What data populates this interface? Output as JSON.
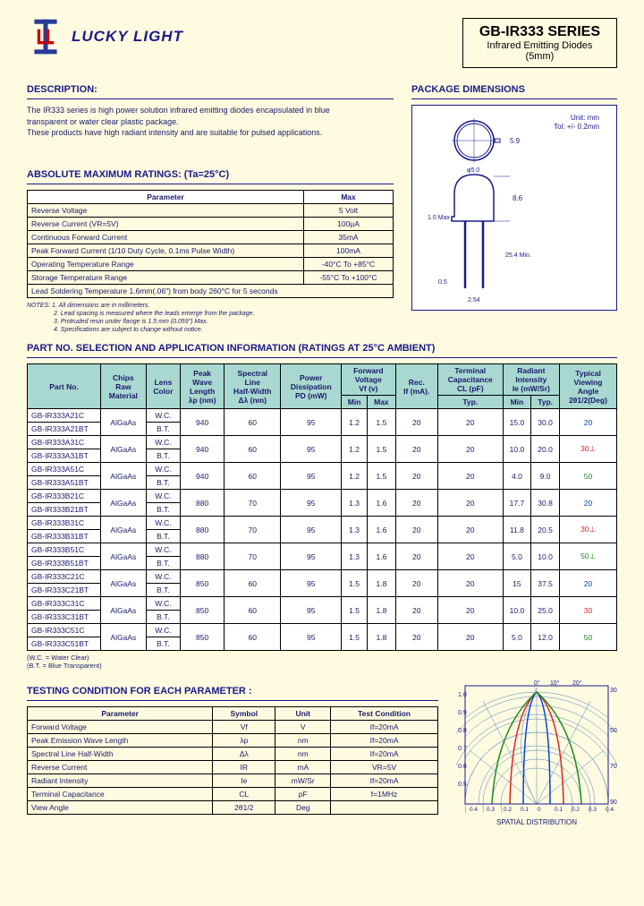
{
  "brand": "LUCKY LIGHT",
  "titleBox": {
    "main": "GB-IR333 SERIES",
    "sub1": "Infrared Emitting Diodes",
    "sub2": "(5mm)"
  },
  "sections": {
    "description": "DESCRIPTION:",
    "packageDim": "PACKAGE DIMENSIONS",
    "amr": "ABSOLUTE MAXIMUM RATINGS: (Ta=25°C)",
    "selection": "PART NO. SELECTION AND APPLICATION INFORMATION (RATINGS AT 25°C AMBIENT)",
    "testing": "TESTING CONDITION FOR EACH PARAMETER :",
    "spatial": "SPATIAL DISTRIBUTION"
  },
  "descText": "The IR333 series is high power solution infrared emitting diodes encapsulated in blue transparent or water clear plastic package.\nThese products have high radiant intensity and are suitable for pulsed applications.",
  "amrHeaders": [
    "Parameter",
    "Max"
  ],
  "amrRows": [
    [
      "Reverse Voltage",
      "5 Volt"
    ],
    [
      "Reverse Current (VR=5V)",
      "100µA"
    ],
    [
      "Continuous Forward Current",
      "35mA"
    ],
    [
      "Peak Forward Current (1/10 Duty Cycle, 0.1ms Pulse Width)",
      "100mA"
    ],
    [
      "Operating Temperature Range",
      "-40°C To +85°C"
    ],
    [
      "Storage Temperature Range",
      "-55°C To +100°C"
    ]
  ],
  "amrFoot": "Lead Soldering Temperature 1.6mm(.06\") from body 260°C for 5 seconds",
  "notesTitle": "NOTES: 1. All dimensions are in millimeters.",
  "notes2": "2. Lead spacing is measured where the leads emerge from the package.",
  "notes3": "3. Protruded resin under flange is 1.5 mm (0.059\") Max.",
  "notes4": "4. Specifications are subject to change without notice.",
  "pkgDimText": {
    "unit": "Unit: mm",
    "tol": "Tol: +/- 0.2mm"
  },
  "selHeaders": {
    "partNo": "Part No.",
    "chips": "Chips\nRaw\nMaterial",
    "lens": "Lens\nColor",
    "peak": "Peak\nWave\nLength\nλp (nm)",
    "spectral": "Spectral\nLine\nHalf-Width\nΔλ (nm)",
    "power": "Power\nDissipation\nPD (mW)",
    "vf": "Forward\nVoltage\nVf (v)",
    "vfMin": "Min",
    "vfMax": "Max",
    "rec": "Rec.\nIf (mA).",
    "cap": "Terminal\nCapacitance\nCL (pF)",
    "capTyp": "Typ.",
    "radiant": "Radiant\nIntensity\nIe (mW/Sr)",
    "radMin": "Min",
    "radTyp": "Typ.",
    "angle": "Typical\nViewing\nAngle\n2θ1/2(Deg)"
  },
  "selRows": [
    {
      "pn": [
        "GB-IR333A21C",
        "GB-IR333A21BT"
      ],
      "chips": "AlGaAs",
      "lens": [
        "W.C.",
        "B.T."
      ],
      "peak": "940",
      "spec": "60",
      "pd": "95",
      "vfmin": "1.2",
      "vfmax": "1.5",
      "rec": "20",
      "cap": "20",
      "rmin": "15.0",
      "rtyp": "30.0",
      "angle": "20",
      "cls": "angle-20"
    },
    {
      "pn": [
        "GB-IR333A31C",
        "GB-IR333A31BT"
      ],
      "chips": "AlGaAs",
      "lens": [
        "W.C.",
        "B.T."
      ],
      "peak": "940",
      "spec": "60",
      "pd": "95",
      "vfmin": "1.2",
      "vfmax": "1.5",
      "rec": "20",
      "cap": "20",
      "rmin": "10.0",
      "rtyp": "20.0",
      "angle": "30⊥",
      "cls": "angle-30"
    },
    {
      "pn": [
        "GB-IR333A51C",
        "GB-IR333A51BT"
      ],
      "chips": "AlGaAs",
      "lens": [
        "W.C.",
        "B.T."
      ],
      "peak": "940",
      "spec": "60",
      "pd": "95",
      "vfmin": "1.2",
      "vfmax": "1.5",
      "rec": "20",
      "cap": "20",
      "rmin": "4.0",
      "rtyp": "9.0",
      "angle": "50",
      "cls": "angle-50"
    },
    {
      "pn": [
        "GB-IR333B21C",
        "GB-IR333B21BT"
      ],
      "chips": "AlGaAs",
      "lens": [
        "W.C.",
        "B.T."
      ],
      "peak": "880",
      "spec": "70",
      "pd": "95",
      "vfmin": "1.3",
      "vfmax": "1.6",
      "rec": "20",
      "cap": "20",
      "rmin": "17.7",
      "rtyp": "30.8",
      "angle": "20",
      "cls": "angle-20"
    },
    {
      "pn": [
        "GB-IR333B31C",
        "GB-IR333B31BT"
      ],
      "chips": "AlGaAs",
      "lens": [
        "W.C.",
        "B.T."
      ],
      "peak": "880",
      "spec": "70",
      "pd": "95",
      "vfmin": "1.3",
      "vfmax": "1.6",
      "rec": "20",
      "cap": "20",
      "rmin": "11.8",
      "rtyp": "20.5",
      "angle": "30⊥",
      "cls": "angle-30"
    },
    {
      "pn": [
        "GB-IR333B51C",
        "GB-IR333B51BT"
      ],
      "chips": "AlGaAs",
      "lens": [
        "W.C.",
        "B.T."
      ],
      "peak": "880",
      "spec": "70",
      "pd": "95",
      "vfmin": "1.3",
      "vfmax": "1.6",
      "rec": "20",
      "cap": "20",
      "rmin": "5.0",
      "rtyp": "10.0",
      "angle": "50⊥",
      "cls": "angle-50"
    },
    {
      "pn": [
        "GB-IR333C21C",
        "GB-IR333C21BT"
      ],
      "chips": "AlGaAs",
      "lens": [
        "W.C.",
        "B.T."
      ],
      "peak": "850",
      "spec": "60",
      "pd": "95",
      "vfmin": "1.5",
      "vfmax": "1.8",
      "rec": "20",
      "cap": "20",
      "rmin": "15",
      "rtyp": "37.5",
      "angle": "20",
      "cls": "angle-20"
    },
    {
      "pn": [
        "GB-IR333C31C",
        "GB-IR333C31BT"
      ],
      "chips": "AlGaAs",
      "lens": [
        "W.C.",
        "B.T."
      ],
      "peak": "850",
      "spec": "60",
      "pd": "95",
      "vfmin": "1.5",
      "vfmax": "1.8",
      "rec": "20",
      "cap": "20",
      "rmin": "10.0",
      "rtyp": "25.0",
      "angle": "30",
      "cls": "angle-30"
    },
    {
      "pn": [
        "GB-IR333C51C",
        "GB-IR333C51BT"
      ],
      "chips": "AlGaAs",
      "lens": [
        "W.C.",
        "B.T."
      ],
      "peak": "850",
      "spec": "60",
      "pd": "95",
      "vfmin": "1.5",
      "vfmax": "1.8",
      "rec": "20",
      "cap": "20",
      "rmin": "5.0",
      "rtyp": "12.0",
      "angle": "50",
      "cls": "angle-50"
    }
  ],
  "legend": "(W.C. = Water Clear)\n(B.T. = Blue Transparent)",
  "testHeaders": [
    "Parameter",
    "Symbol",
    "Unit",
    "Test Condition"
  ],
  "testRows": [
    [
      "Forward Voltage",
      "Vf",
      "V",
      "If=20mA"
    ],
    [
      "Peak Emission Wave Length",
      "λp",
      "nm",
      "If=20mA"
    ],
    [
      "Spectral Line Half-Width",
      "Δλ",
      "nm",
      "If=20mA"
    ],
    [
      "Reverse Current",
      "IR",
      "mA",
      "VR=5V"
    ],
    [
      "Radiant Intensity",
      "Ie",
      "mW/Sr",
      "If=20mA"
    ],
    [
      "Terminal Capacitance",
      "CL",
      "pF",
      "f=1MHz"
    ],
    [
      "View Angle",
      "2θ1/2",
      "Deg",
      ""
    ]
  ],
  "chart": {
    "angleTicks": [
      "0°",
      "10°",
      "20°",
      "30°",
      "50°",
      "70°",
      "90°"
    ],
    "radialTicks": [
      "1.0",
      "0.9",
      "0.8",
      "0.7",
      "0.6",
      "0.5"
    ],
    "bottomTicks": [
      "0.4",
      "0.3",
      "0.2",
      "0.1",
      "0",
      "0.1",
      "0.2",
      "0.3",
      "0.4"
    ],
    "colors": {
      "20": "#0040e0",
      "30": "#e02020",
      "50": "#1a8a1a",
      "grid": "#5080c0"
    }
  }
}
